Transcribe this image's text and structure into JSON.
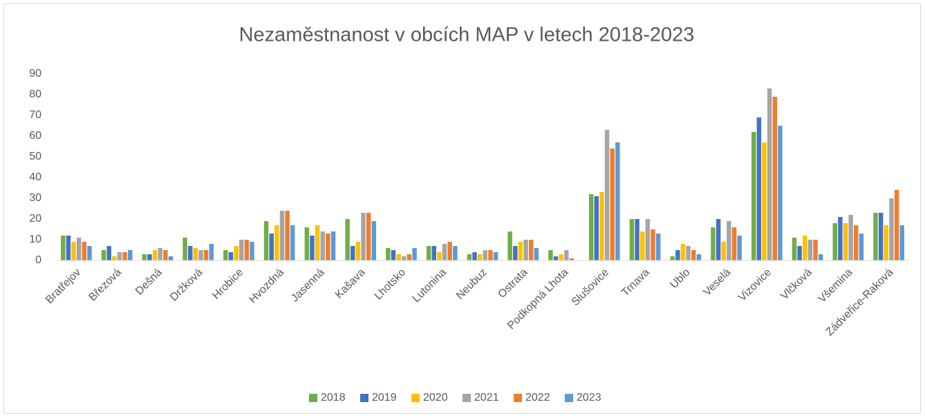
{
  "chart_data": {
    "type": "bar",
    "title": "Nezaměstnanost v obcích MAP v letech 2018-2023",
    "categories": [
      "Bratřejov",
      "Březová",
      "Dešná",
      "Držková",
      "Hrobice",
      "Hvozdná",
      "Jasenná",
      "Kašava",
      "Lhotsko",
      "Lutonina",
      "Neubuz",
      "Ostrata",
      "Podkopná Lhota",
      "Slušovice",
      "Trnava",
      "Ublo",
      "Veselá",
      "Vizovice",
      "Vlčková",
      "Všemina",
      "Zádveřice-Raková"
    ],
    "series": [
      {
        "name": "2018",
        "color": "#70ad47",
        "values": [
          12,
          5,
          3,
          11,
          5,
          19,
          16,
          20,
          6,
          7,
          3,
          14,
          5,
          32,
          20,
          2,
          16,
          62,
          11,
          18,
          23
        ]
      },
      {
        "name": "2019",
        "color": "#4472c4",
        "values": [
          12,
          7,
          3,
          7,
          4,
          13,
          12,
          7,
          5,
          7,
          4,
          7,
          2,
          31,
          20,
          5,
          20,
          69,
          7,
          21,
          23
        ]
      },
      {
        "name": "2020",
        "color": "#ffc000",
        "values": [
          9,
          2,
          5,
          6,
          7,
          17,
          17,
          9,
          3,
          4,
          3,
          9,
          3,
          33,
          14,
          8,
          9,
          57,
          12,
          18,
          17
        ]
      },
      {
        "name": "2021",
        "color": "#a5a5a5",
        "values": [
          11,
          4,
          6,
          5,
          10,
          24,
          14,
          23,
          2,
          8,
          5,
          10,
          5,
          63,
          20,
          7,
          19,
          83,
          10,
          22,
          30
        ]
      },
      {
        "name": "2022",
        "color": "#ed7d31",
        "values": [
          9,
          4,
          5,
          5,
          10,
          24,
          13,
          23,
          3,
          9,
          5,
          10,
          1,
          54,
          15,
          5,
          16,
          79,
          10,
          17,
          34
        ]
      },
      {
        "name": "2023",
        "color": "#5b9bd5",
        "values": [
          7,
          5,
          2,
          8,
          9,
          17,
          14,
          19,
          6,
          7,
          4,
          6,
          0,
          57,
          13,
          3,
          12,
          65,
          3,
          13,
          17
        ]
      }
    ],
    "ylim": [
      0,
      90
    ],
    "yticks": [
      0,
      10,
      20,
      30,
      40,
      50,
      60,
      70,
      80,
      90
    ],
    "grid": false,
    "legend": "bottom"
  }
}
